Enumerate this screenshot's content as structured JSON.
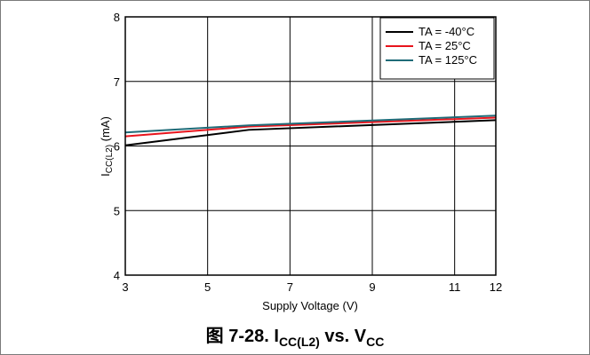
{
  "chart_data": {
    "type": "line",
    "caption": {
      "prefix": "图 7-28. I",
      "sub1": "CC(L2)",
      "mid": " vs. V",
      "sub2": "CC"
    },
    "xlabel": "Supply Voltage (V)",
    "ylabel": {
      "main": "I",
      "sub": "CC(L2)",
      "unit": " (mA)"
    },
    "xlim": [
      3,
      12
    ],
    "ylim": [
      4,
      8
    ],
    "xticks": [
      3,
      5,
      7,
      9,
      11,
      12
    ],
    "yticks": [
      4,
      5,
      6,
      7,
      8
    ],
    "grid": true,
    "legend_position": "top-right",
    "series": [
      {
        "name": "TA = -40°C",
        "color": "#000000",
        "x": [
          3,
          6,
          12
        ],
        "y": [
          6.01,
          6.25,
          6.4
        ]
      },
      {
        "name": "TA = 25°C",
        "color": "#e8141c",
        "x": [
          3,
          6,
          12
        ],
        "y": [
          6.15,
          6.3,
          6.44
        ]
      },
      {
        "name": "TA = 125°C",
        "color": "#1f6b78",
        "x": [
          3,
          6,
          12
        ],
        "y": [
          6.21,
          6.32,
          6.47
        ]
      }
    ]
  }
}
